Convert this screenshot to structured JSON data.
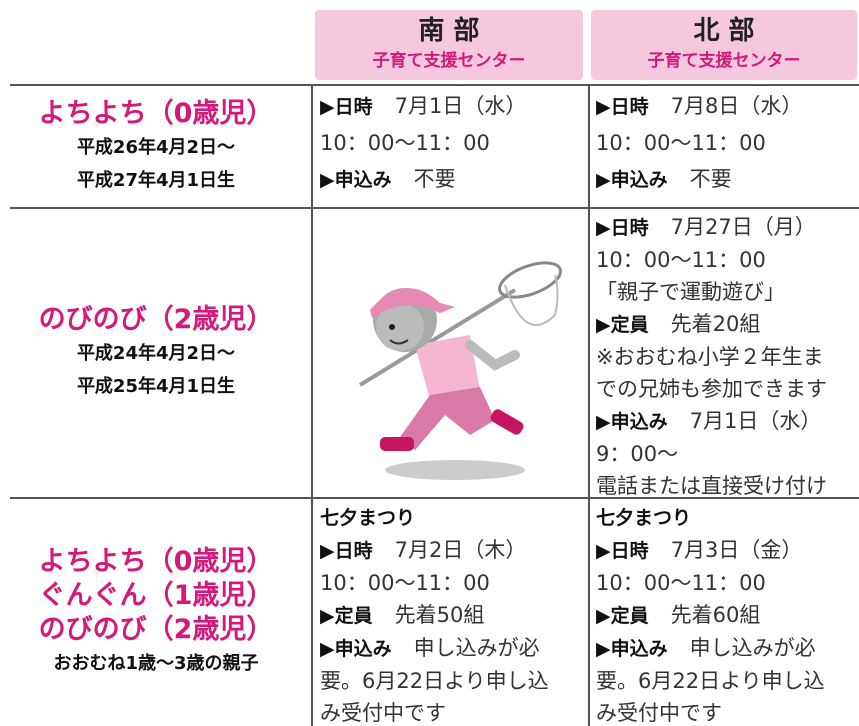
{
  "header": {
    "columns": [
      {
        "title": "南 部",
        "subtitle": "子育て支援センター"
      },
      {
        "title": "北 部",
        "subtitle": "子育て支援センター"
      }
    ]
  },
  "rows": [
    {
      "titles": [
        "よちよち（0歳児）"
      ],
      "notes": [
        "平成26年4月2日～",
        "平成27年4月1日生"
      ],
      "south": [
        {
          "label": "▶日時",
          "text": "7月1日（水）"
        },
        {
          "text": "10：00～11：00"
        },
        {
          "label": "▶申込み",
          "text": "不要"
        }
      ],
      "north": [
        {
          "label": "▶日時",
          "text": "7月8日（水）"
        },
        {
          "text": "10：00～11：00"
        },
        {
          "label": "▶申込み",
          "text": "不要"
        }
      ]
    },
    {
      "titles": [
        "のびのび（2歳児）"
      ],
      "notes": [
        "平成24年4月2日～",
        "平成25年4月1日生"
      ],
      "north": [
        {
          "label": "▶日時",
          "text": "7月27日（月）"
        },
        {
          "text": "10：00～11：00"
        },
        {
          "text": "「親子で運動遊び」"
        },
        {
          "label": "▶定員",
          "text": "先着20組"
        },
        {
          "text": "※おおむね小学２年生ま"
        },
        {
          "text": "での兄姉も参加できます"
        },
        {
          "label": "▶申込み",
          "text": "7月1日（水）"
        },
        {
          "text": "9：00～"
        },
        {
          "text": "電話または直接受け付け"
        }
      ]
    },
    {
      "titles": [
        "よちよち（0歳児）",
        "ぐんぐん（1歳児）",
        "のびのび（2歳児）"
      ],
      "notes": [
        "おおむね1歳～3歳の親子"
      ],
      "south": [
        {
          "label": "七夕まつり"
        },
        {
          "label": "▶日時",
          "text": "7月2日（木）"
        },
        {
          "text": "10：00～11：00"
        },
        {
          "label": "▶定員",
          "text": "先着50組"
        },
        {
          "label": "▶申込み",
          "text": "申し込みが必"
        },
        {
          "text": "要。6月22日より申し込"
        },
        {
          "text": "み受付中です"
        }
      ],
      "north": [
        {
          "label": "七夕まつり"
        },
        {
          "label": "▶日時",
          "text": "7月3日（金）"
        },
        {
          "text": "10：00～11：00"
        },
        {
          "label": "▶定員",
          "text": "先着60組"
        },
        {
          "label": "▶申込み",
          "text": "申し込みが必"
        },
        {
          "text": "要。6月22日より申し込"
        },
        {
          "text": "み受付中です"
        }
      ]
    }
  ]
}
